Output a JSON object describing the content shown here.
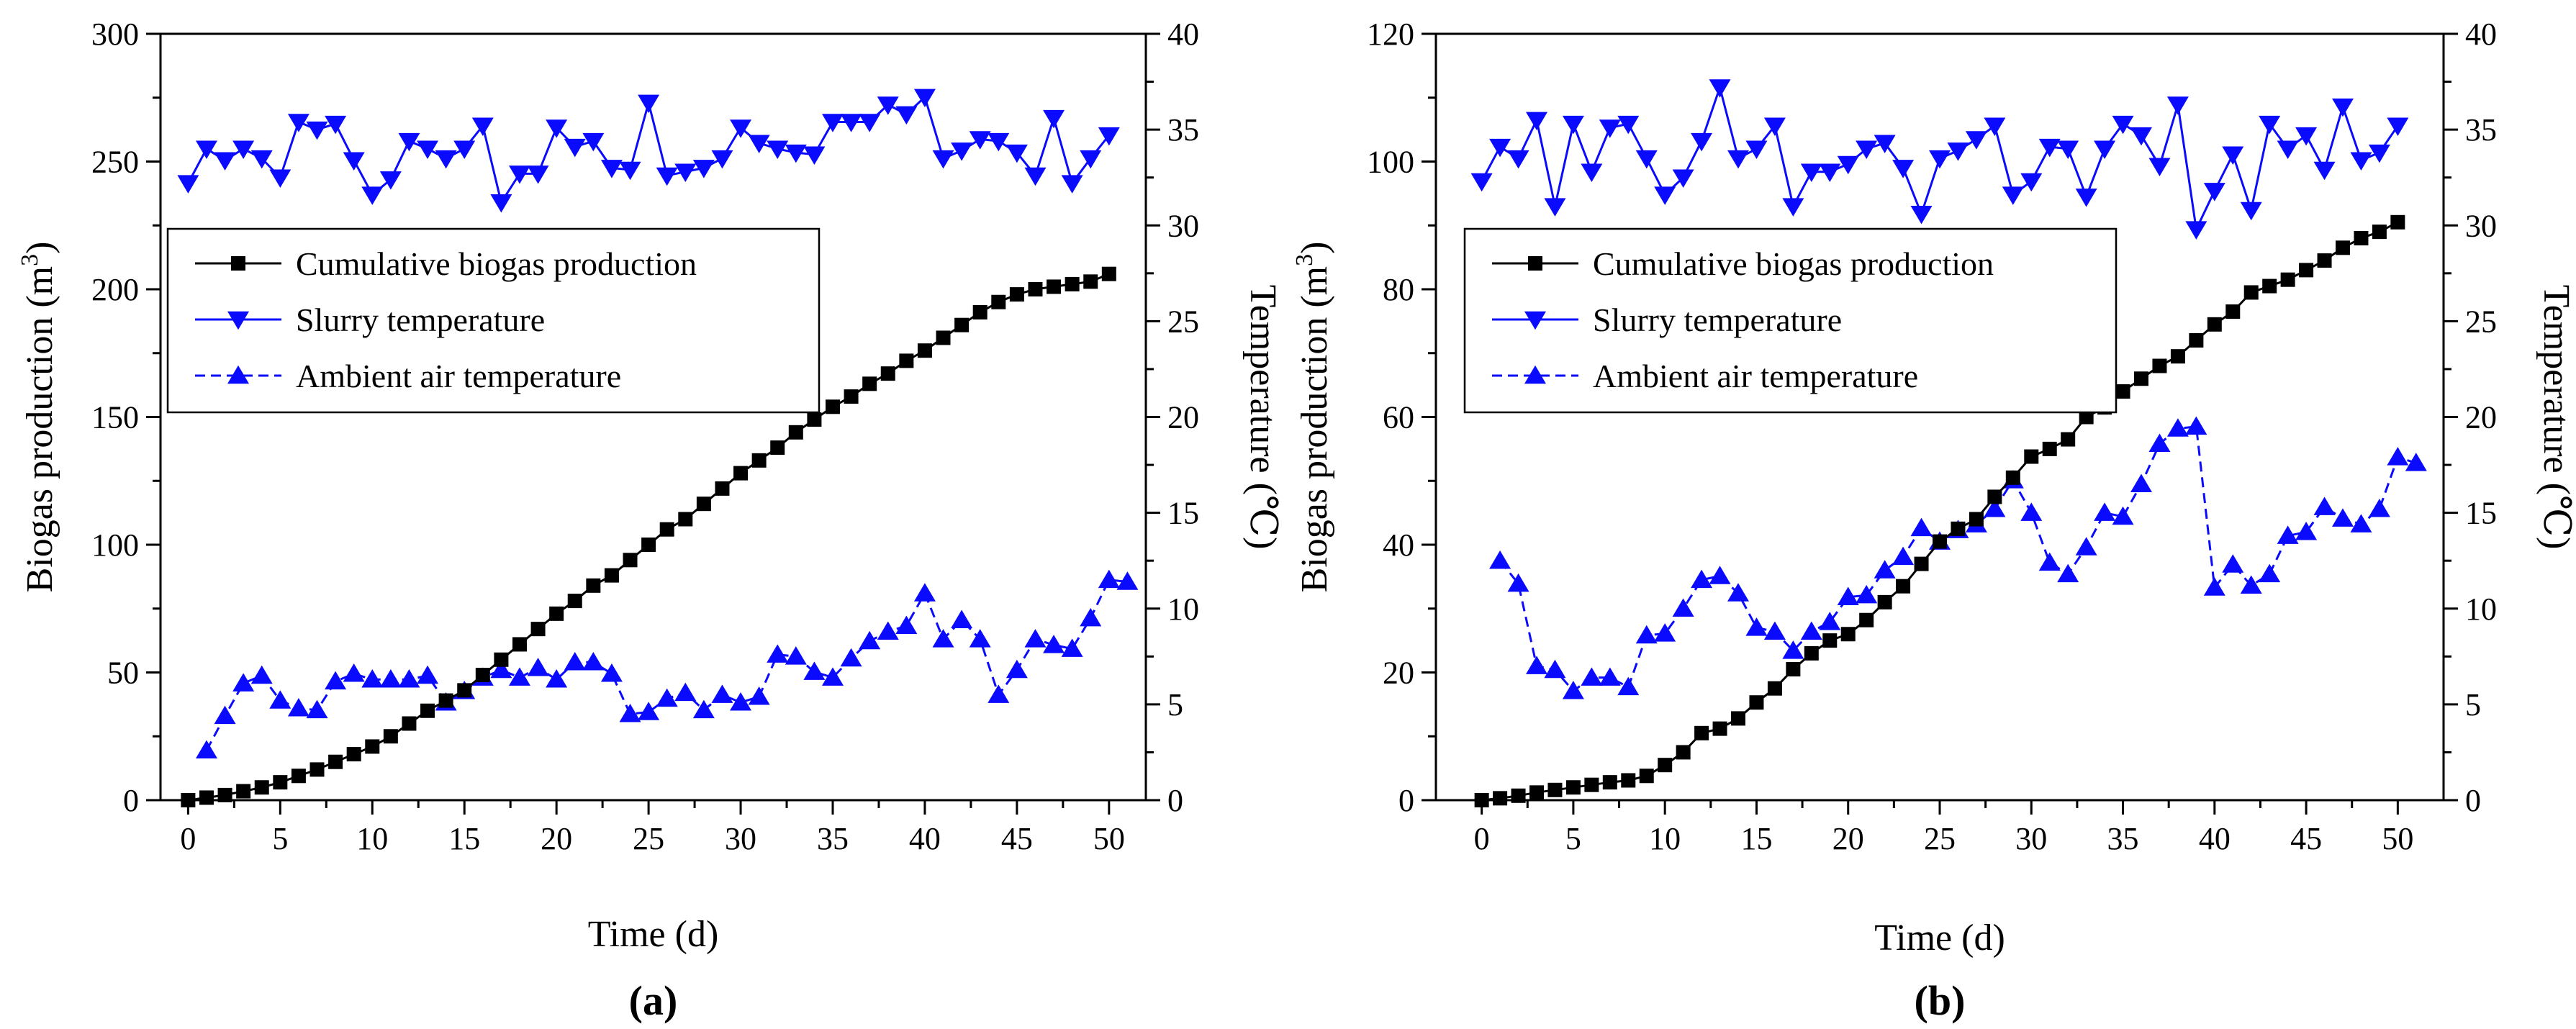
{
  "chart_data": [
    {
      "panel_label": "(a)",
      "type": "line",
      "xlabel": "Time (d)",
      "ylabel_left_main": "Biogas production (m",
      "ylabel_left_sup": "3",
      "ylabel_left_close": ")",
      "ylabel_right": "Temperature (℃)",
      "xlim": [
        -1.5,
        52
      ],
      "ylim_left": [
        0,
        300
      ],
      "ylim_right": [
        0,
        40
      ],
      "xticks": [
        0,
        5,
        10,
        15,
        20,
        25,
        30,
        35,
        40,
        45,
        50
      ],
      "yticks_left": [
        0,
        50,
        100,
        150,
        200,
        250,
        300
      ],
      "yticks_right": [
        0,
        5,
        10,
        15,
        20,
        25,
        30,
        35,
        40
      ],
      "legend_position": "upper-left",
      "series": [
        {
          "name": "Cumulative biogas production",
          "axis": "left",
          "marker": "square",
          "color": "#000000",
          "line": "solid",
          "x": [
            0,
            1,
            2,
            3,
            4,
            5,
            6,
            7,
            8,
            9,
            10,
            11,
            12,
            13,
            14,
            15,
            16,
            17,
            18,
            19,
            20,
            21,
            22,
            23,
            24,
            25,
            26,
            27,
            28,
            29,
            30,
            31,
            32,
            33,
            34,
            35,
            36,
            37,
            38,
            39,
            40,
            41,
            42,
            43,
            44,
            45,
            46,
            47,
            48,
            49,
            50
          ],
          "y": [
            0,
            1,
            2,
            3.5,
            5,
            7,
            9.5,
            12,
            15,
            18,
            21,
            25,
            30,
            35,
            39,
            43,
            49,
            55,
            61,
            67,
            73,
            78,
            84,
            88,
            94,
            100,
            106,
            110,
            116,
            122,
            128,
            133,
            138,
            144,
            149,
            154,
            158,
            163,
            167,
            172,
            176,
            181,
            186,
            191,
            195,
            198,
            200,
            201,
            202,
            203,
            206
          ]
        },
        {
          "name": "Slurry temperature",
          "axis": "right",
          "marker": "triangle-down",
          "color": "#0a0aff",
          "line": "solid",
          "x": [
            0,
            1,
            2,
            3,
            4,
            5,
            6,
            7,
            8,
            9,
            10,
            11,
            12,
            13,
            14,
            15,
            16,
            17,
            18,
            19,
            20,
            21,
            22,
            23,
            24,
            25,
            26,
            27,
            28,
            29,
            30,
            31,
            32,
            33,
            34,
            35,
            36,
            37,
            38,
            39,
            40,
            41,
            42,
            43,
            44,
            45,
            46,
            47,
            48,
            49,
            50
          ],
          "y": [
            32.2,
            34.0,
            33.4,
            34.0,
            33.5,
            32.5,
            35.4,
            35.0,
            35.3,
            33.4,
            31.6,
            32.4,
            34.4,
            34.0,
            33.5,
            34.0,
            35.2,
            31.2,
            32.7,
            32.7,
            35.1,
            34.1,
            34.4,
            33.0,
            32.9,
            36.4,
            32.6,
            32.8,
            33.0,
            33.5,
            35.1,
            34.3,
            34.0,
            33.8,
            33.7,
            35.4,
            35.4,
            35.4,
            36.3,
            35.8,
            36.7,
            33.5,
            33.9,
            34.5,
            34.4,
            33.8,
            32.6,
            35.6,
            32.2,
            33.5,
            34.7
          ]
        },
        {
          "name": "Ambient air temperature",
          "axis": "right",
          "marker": "triangle-up",
          "color": "#0a0aff",
          "line": "dashed",
          "x": [
            1,
            2,
            3,
            4,
            5,
            6,
            7,
            8,
            9,
            10,
            11,
            12,
            13,
            14,
            15,
            16,
            17,
            18,
            19,
            20,
            21,
            22,
            23,
            24,
            25,
            26,
            27,
            28,
            29,
            30,
            31,
            32,
            33,
            34,
            35,
            36,
            37,
            38,
            39,
            40,
            41,
            42,
            43,
            44,
            45,
            46,
            47,
            48,
            49,
            50,
            51
          ],
          "y": [
            2.6,
            4.4,
            6.1,
            6.5,
            5.2,
            4.8,
            4.7,
            6.2,
            6.6,
            6.3,
            6.3,
            6.3,
            6.5,
            5.1,
            5.7,
            6.4,
            6.8,
            6.4,
            6.9,
            6.3,
            7.2,
            7.2,
            6.6,
            4.5,
            4.6,
            5.3,
            5.6,
            4.7,
            5.5,
            5.1,
            5.4,
            7.6,
            7.5,
            6.7,
            6.4,
            7.4,
            8.3,
            8.8,
            9.1,
            10.8,
            8.4,
            9.4,
            8.4,
            5.5,
            6.8,
            8.4,
            8.1,
            7.9,
            9.5,
            11.5,
            11.4
          ]
        }
      ]
    },
    {
      "panel_label": "(b)",
      "type": "line",
      "xlabel": "Time (d)",
      "ylabel_left_main": "Biogas production (m",
      "ylabel_left_sup": "3",
      "ylabel_left_close": ")",
      "ylabel_right": "Temperature (℃)",
      "xlim": [
        -2.5,
        52.5
      ],
      "ylim_left": [
        0,
        120
      ],
      "ylim_right": [
        0,
        40
      ],
      "xticks": [
        0,
        5,
        10,
        15,
        20,
        25,
        30,
        35,
        40,
        45,
        50
      ],
      "yticks_left": [
        0,
        20,
        40,
        60,
        80,
        100,
        120
      ],
      "yticks_right": [
        0,
        5,
        10,
        15,
        20,
        25,
        30,
        35,
        40
      ],
      "legend_position": "upper-left",
      "series": [
        {
          "name": "Cumulative biogas production",
          "axis": "left",
          "marker": "square",
          "color": "#000000",
          "line": "solid",
          "x": [
            0,
            1,
            2,
            3,
            4,
            5,
            6,
            7,
            8,
            9,
            10,
            11,
            12,
            13,
            14,
            15,
            16,
            17,
            18,
            19,
            20,
            21,
            22,
            23,
            24,
            25,
            26,
            27,
            28,
            29,
            30,
            31,
            32,
            33,
            34,
            35,
            36,
            37,
            38,
            39,
            40,
            41,
            42,
            43,
            44,
            45,
            46,
            47,
            48,
            49,
            50
          ],
          "y": [
            0,
            0.3,
            0.7,
            1.2,
            1.6,
            2.0,
            2.4,
            2.8,
            3.1,
            3.8,
            5.5,
            7.5,
            10.5,
            11.2,
            12.8,
            15.3,
            17.5,
            20.5,
            23.0,
            25.0,
            26.0,
            28.2,
            31.0,
            33.5,
            37.0,
            40.5,
            42.5,
            44.0,
            47.5,
            50.5,
            53.8,
            55.0,
            56.5,
            60.0,
            61.5,
            64.0,
            66.0,
            68.0,
            69.5,
            72.0,
            74.5,
            76.5,
            79.5,
            80.5,
            81.5,
            83.0,
            84.5,
            86.5,
            88.0,
            89.0,
            90.5
          ]
        },
        {
          "name": "Slurry temperature",
          "axis": "right",
          "marker": "triangle-down",
          "color": "#0a0aff",
          "line": "solid",
          "x": [
            0,
            1,
            2,
            3,
            4,
            5,
            6,
            7,
            8,
            9,
            10,
            11,
            12,
            13,
            14,
            15,
            16,
            17,
            18,
            19,
            20,
            21,
            22,
            23,
            24,
            25,
            26,
            27,
            28,
            29,
            30,
            31,
            32,
            33,
            34,
            35,
            36,
            37,
            38,
            39,
            40,
            41,
            42,
            43,
            44,
            45,
            46,
            47,
            48,
            49,
            50
          ],
          "y": [
            32.3,
            34.1,
            33.5,
            35.5,
            31.0,
            35.3,
            32.8,
            35.1,
            35.3,
            33.5,
            31.6,
            32.5,
            34.4,
            37.2,
            33.5,
            34.0,
            35.2,
            31.0,
            32.8,
            32.8,
            33.2,
            34.0,
            34.3,
            33.0,
            30.6,
            33.5,
            33.9,
            34.5,
            35.2,
            31.6,
            32.3,
            34.1,
            34.0,
            31.5,
            34.0,
            35.3,
            34.7,
            33.1,
            36.3,
            29.8,
            31.8,
            33.7,
            30.8,
            35.3,
            34.0,
            34.7,
            32.9,
            36.2,
            33.4,
            33.8,
            35.2
          ]
        },
        {
          "name": "Ambient air temperature",
          "axis": "right",
          "marker": "triangle-up",
          "color": "#0a0aff",
          "line": "dashed",
          "x": [
            1,
            2,
            3,
            4,
            5,
            6,
            7,
            8,
            9,
            10,
            11,
            12,
            13,
            14,
            15,
            16,
            17,
            18,
            19,
            20,
            21,
            22,
            23,
            24,
            25,
            26,
            27,
            28,
            29,
            30,
            31,
            32,
            33,
            34,
            35,
            36,
            37,
            38,
            39,
            40,
            41,
            42,
            43,
            44,
            45,
            46,
            47,
            48,
            49,
            50,
            51
          ],
          "y": [
            12.5,
            11.3,
            7.0,
            6.8,
            5.7,
            6.4,
            6.4,
            5.9,
            8.6,
            8.7,
            10.0,
            11.5,
            11.7,
            10.8,
            9.0,
            8.8,
            7.8,
            8.8,
            9.3,
            10.6,
            10.7,
            12.0,
            12.7,
            14.2,
            13.5,
            14.1,
            14.4,
            15.2,
            16.7,
            15.0,
            12.4,
            11.8,
            13.2,
            15.0,
            14.8,
            16.5,
            18.6,
            19.4,
            19.5,
            11.1,
            12.3,
            11.2,
            11.8,
            13.8,
            14.0,
            15.3,
            14.7,
            14.4,
            15.2,
            17.9,
            17.6
          ]
        }
      ]
    }
  ]
}
